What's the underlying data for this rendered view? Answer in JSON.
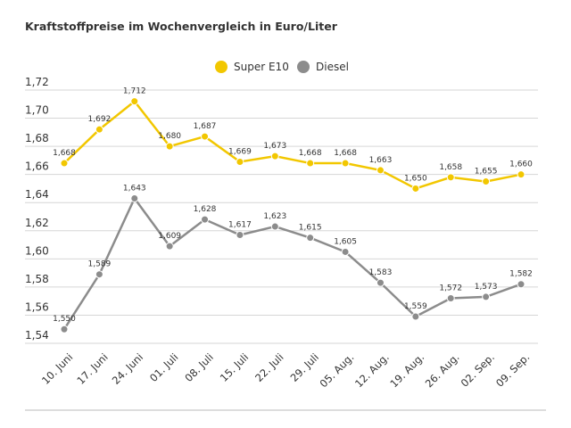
{
  "chart_data": {
    "type": "line",
    "title": "Kraftstoffpreise im Wochenvergleich in Euro/Liter",
    "categories": [
      "10. Juni",
      "17. Juni",
      "24. Juni",
      "01. Juli",
      "08. Juli",
      "15. Juli",
      "22. Juli",
      "29. Juli",
      "05. Aug.",
      "12. Aug.",
      "19. Aug.",
      "26. Aug.",
      "02. Sep.",
      "09. Sep."
    ],
    "series": [
      {
        "name": "Super E10",
        "color": "#f2c700",
        "values": [
          1.668,
          1.692,
          1.712,
          1.68,
          1.687,
          1.669,
          1.673,
          1.668,
          1.668,
          1.663,
          1.65,
          1.658,
          1.655,
          1.66
        ],
        "value_labels": [
          "1,668",
          "1,692",
          "1,712",
          "1,680",
          "1,687",
          "1,669",
          "1,673",
          "1,668",
          "1,668",
          "1,663",
          "1,650",
          "1,658",
          "1,655",
          "1,660"
        ]
      },
      {
        "name": "Diesel",
        "color": "#8c8c8c",
        "values": [
          1.55,
          1.589,
          1.643,
          1.609,
          1.628,
          1.617,
          1.623,
          1.615,
          1.605,
          1.583,
          1.559,
          1.572,
          1.573,
          1.582
        ],
        "value_labels": [
          "1,550",
          "1,589",
          "1,643",
          "1,609",
          "1,628",
          "1,617",
          "1,623",
          "1,615",
          "1,605",
          "1,583",
          "1,559",
          "1,572",
          "1,573",
          "1,582"
        ]
      }
    ],
    "ylim": [
      1.54,
      1.72
    ],
    "yticks": [
      {
        "value": 1.54,
        "label": "1,54"
      },
      {
        "value": 1.56,
        "label": "1,56"
      },
      {
        "value": 1.58,
        "label": "1,58"
      },
      {
        "value": 1.6,
        "label": "1,60"
      },
      {
        "value": 1.62,
        "label": "1,62"
      },
      {
        "value": 1.64,
        "label": "1,64"
      },
      {
        "value": 1.66,
        "label": "1,66"
      },
      {
        "value": 1.68,
        "label": "1,68"
      },
      {
        "value": 1.7,
        "label": "1,70"
      },
      {
        "value": 1.72,
        "label": "1,72"
      }
    ],
    "grid": true,
    "legend": "top"
  }
}
